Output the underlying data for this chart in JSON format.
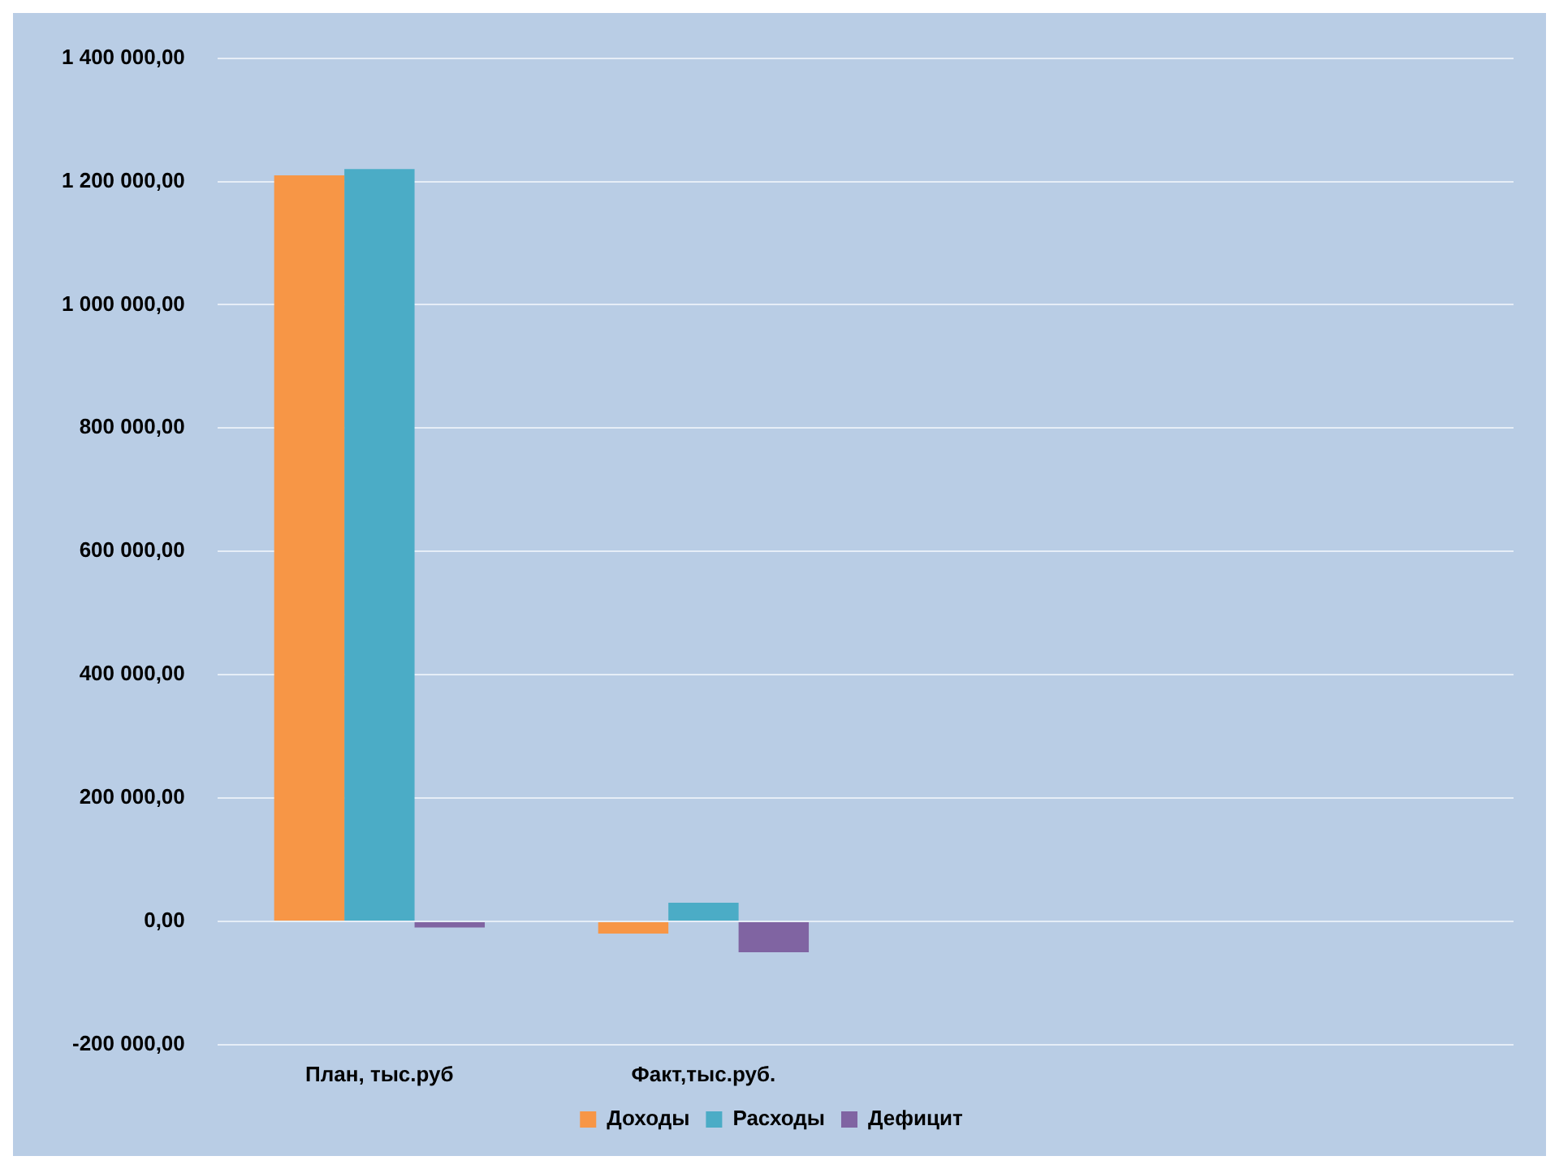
{
  "chart_data": {
    "type": "bar",
    "categories": [
      "План, тыс.руб",
      "Факт,тыс.руб.",
      null,
      null
    ],
    "series": [
      {
        "name": "Доходы",
        "color": "#f79646",
        "values": [
          1210000,
          -20000,
          null,
          null
        ]
      },
      {
        "name": "Расходы",
        "color": "#4bacc6",
        "values": [
          1220000,
          30000,
          null,
          null
        ]
      },
      {
        "name": "Дефицит",
        "color": "#8064a2",
        "values": [
          -10000,
          -50000,
          null,
          null
        ]
      }
    ],
    "ylim": [
      -200000,
      1400000
    ],
    "yticks": [
      {
        "value": -200000,
        "label": "-200 000,00"
      },
      {
        "value": 0,
        "label": "0,00"
      },
      {
        "value": 200000,
        "label": "200 000,00"
      },
      {
        "value": 400000,
        "label": "400 000,00"
      },
      {
        "value": 600000,
        "label": "600 000,00"
      },
      {
        "value": 800000,
        "label": "800 000,00"
      },
      {
        "value": 1000000,
        "label": "1 000 000,00"
      },
      {
        "value": 1200000,
        "label": "1 200 000,00"
      },
      {
        "value": 1400000,
        "label": "1 400 000,00"
      }
    ],
    "grid": "y",
    "legend": "bottom"
  }
}
